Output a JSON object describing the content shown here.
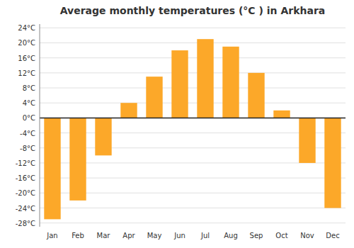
{
  "chart_data": {
    "type": "bar",
    "title": "Average monthly temperatures (°C ) in Arkhara",
    "categories": [
      "Jan",
      "Feb",
      "Mar",
      "Apr",
      "May",
      "Jun",
      "Jul",
      "Aug",
      "Sep",
      "Oct",
      "Nov",
      "Dec"
    ],
    "values": [
      -27,
      -22,
      -10,
      4,
      11,
      18,
      21,
      19,
      12,
      2,
      -12,
      -24
    ],
    "color": "#FCA829",
    "ylim": [
      -29,
      25
    ],
    "yticks": [
      {
        "value": -28,
        "label": "-28°C"
      },
      {
        "value": -24,
        "label": "-24°C"
      },
      {
        "value": -20,
        "label": "-20°C"
      },
      {
        "value": -16,
        "label": "-16°C"
      },
      {
        "value": -12,
        "label": "-12°C"
      },
      {
        "value": -8,
        "label": "-8°C"
      },
      {
        "value": -4,
        "label": "-4°C"
      },
      {
        "value": 0,
        "label": "0°C"
      },
      {
        "value": 4,
        "label": "4°C"
      },
      {
        "value": 8,
        "label": "8°C"
      },
      {
        "value": 12,
        "label": "12°C"
      },
      {
        "value": 16,
        "label": "16°C"
      },
      {
        "value": 20,
        "label": "20°C"
      },
      {
        "value": 24,
        "label": "24°C"
      }
    ],
    "grid": true
  }
}
